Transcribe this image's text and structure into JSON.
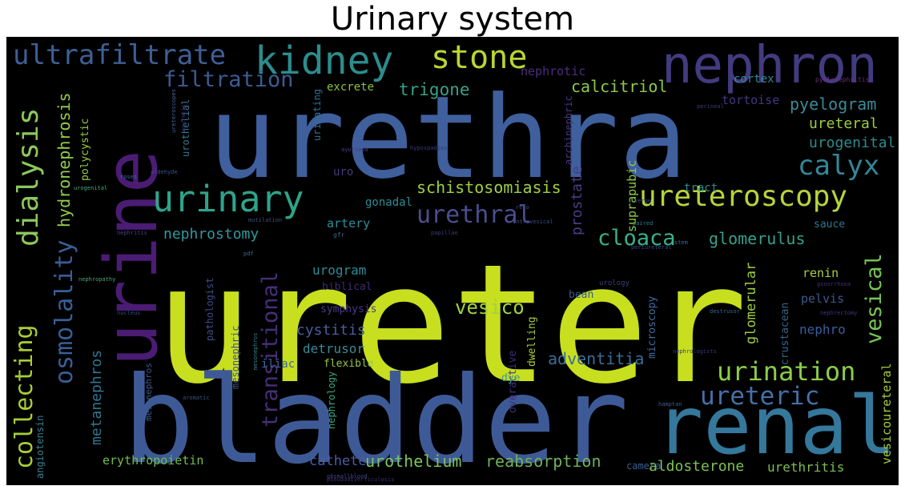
{
  "title": "Urinary system",
  "colors": {
    "background": "#000000",
    "title": "#000000"
  },
  "words": [
    {
      "text": "ureter",
      "color": "#c8df1f"
    },
    {
      "text": "urethra",
      "color": "#3f5f9d"
    },
    {
      "text": "bladder",
      "color": "#3e5a96"
    },
    {
      "text": "urine",
      "color": "#4b1c74"
    },
    {
      "text": "renal",
      "color": "#35789c"
    },
    {
      "text": "nephron",
      "color": "#433b80"
    },
    {
      "text": "kidney",
      "color": "#2d8c8d"
    },
    {
      "text": "stone",
      "color": "#b9d631"
    },
    {
      "text": "ultrafiltrate",
      "color": "#3e5f95"
    },
    {
      "text": "urinary",
      "color": "#2fa38a"
    },
    {
      "text": "ureteroscopy",
      "color": "#b6d43c"
    },
    {
      "text": "dialysis",
      "color": "#8cc85a"
    },
    {
      "text": "calyx",
      "color": "#33879a"
    },
    {
      "text": "filtration",
      "color": "#3d5b93"
    },
    {
      "text": "urination",
      "color": "#8bce48"
    },
    {
      "text": "ureteric",
      "color": "#456fa8"
    },
    {
      "text": "urethral",
      "color": "#4b4e8e"
    },
    {
      "text": "cloaca",
      "color": "#3ab08c"
    },
    {
      "text": "collecting",
      "color": "#a7ce36"
    },
    {
      "text": "osmolality",
      "color": "#385f97"
    },
    {
      "text": "trigone",
      "color": "#39a189"
    },
    {
      "text": "calcitriol",
      "color": "#8ac94b"
    },
    {
      "text": "pyelogram",
      "color": "#3a8a97"
    },
    {
      "text": "schistosomiasis",
      "color": "#9ed043"
    },
    {
      "text": "transitional",
      "color": "#472e78"
    },
    {
      "text": "vesical",
      "color": "#77c554"
    },
    {
      "text": "hydronephrosis",
      "color": "#90cd4a"
    },
    {
      "text": "nephrostomy",
      "color": "#3098a0"
    },
    {
      "text": "glomerulus",
      "color": "#35a08a"
    },
    {
      "text": "ureteral",
      "color": "#9acd46"
    },
    {
      "text": "urogenital",
      "color": "#2c8c8f"
    },
    {
      "text": "nephrotic",
      "color": "#4a2d80"
    },
    {
      "text": "excrete",
      "color": "#8dc13f"
    },
    {
      "text": "cortex",
      "color": "#2e8a98"
    },
    {
      "text": "tortoise",
      "color": "#433785"
    },
    {
      "text": "pyelonephritis",
      "color": "#6a2d80"
    },
    {
      "text": "vesico",
      "color": "#9fd344"
    },
    {
      "text": "cystitis",
      "color": "#4a5d9e"
    },
    {
      "text": "detrusor",
      "color": "#3a8a96"
    },
    {
      "text": "adventitia",
      "color": "#3b6d99"
    },
    {
      "text": "urogram",
      "color": "#2f8998"
    },
    {
      "text": "glomerular",
      "color": "#9ccd42"
    },
    {
      "text": "nephro",
      "color": "#3a5d9a"
    },
    {
      "text": "vesicoureteral",
      "color": "#a5ce34"
    },
    {
      "text": "metanephros",
      "color": "#30758f"
    },
    {
      "text": "erythropoietin",
      "color": "#6ebe50"
    },
    {
      "text": "catheter",
      "color": "#4a5da3"
    },
    {
      "text": "urothelium",
      "color": "#7cc55e"
    },
    {
      "text": "reabsorption",
      "color": "#6fb15a"
    },
    {
      "text": "aldosterone",
      "color": "#7bc355"
    },
    {
      "text": "urethritis",
      "color": "#7bbd54"
    },
    {
      "text": "camera",
      "color": "#3a6090"
    },
    {
      "text": "prostate",
      "color": "#4a3c86"
    },
    {
      "text": "suprapubic",
      "color": "#8ec94a"
    },
    {
      "text": "tract",
      "color": "#2d8b8f"
    },
    {
      "text": "artery",
      "color": "#2e8e96"
    },
    {
      "text": "gonadal",
      "color": "#2d8c95"
    },
    {
      "text": "uro",
      "color": "#433a7e"
    },
    {
      "text": "urinating",
      "color": "#2e7292"
    },
    {
      "text": "urothelial",
      "color": "#35768e"
    },
    {
      "text": "archinephric",
      "color": "#4a3784"
    },
    {
      "text": "polycystic",
      "color": "#98cc45"
    },
    {
      "text": "mesonephric",
      "color": "#46517f"
    },
    {
      "text": "symphysis",
      "color": "#4a3a88"
    },
    {
      "text": "biblical",
      "color": "#3e2a73"
    },
    {
      "text": "bean",
      "color": "#355c8c"
    },
    {
      "text": "microscopy",
      "color": "#3f6da0"
    },
    {
      "text": "pelvis",
      "color": "#3c598a"
    },
    {
      "text": "crustacean",
      "color": "#36638b"
    },
    {
      "text": "renin",
      "color": "#a8cf45"
    },
    {
      "text": "sauce",
      "color": "#2f7795"
    },
    {
      "text": "overactive",
      "color": "#3f2e7a"
    },
    {
      "text": "dwelling",
      "color": "#a5cd3e"
    },
    {
      "text": "dye",
      "color": "#3a9a92"
    },
    {
      "text": "flexible",
      "color": "#96c645"
    },
    {
      "text": "iliac",
      "color": "#3a6aa1"
    },
    {
      "text": "nephrology",
      "color": "#3ba584"
    },
    {
      "text": "mesonephros",
      "color": "#3a5c8a"
    },
    {
      "text": "pathologist",
      "color": "#3d4d86"
    },
    {
      "text": "angiotensin",
      "color": "#3a8090"
    },
    {
      "text": "urology",
      "color": "#3e3f7d"
    },
    {
      "text": "nephrologists",
      "color": "#3b3a78"
    },
    {
      "text": "destrusor",
      "color": "#2f6c8e"
    },
    {
      "text": "gonorrhoea",
      "color": "#4a2a7a"
    },
    {
      "text": "nephrectomy",
      "color": "#3e3680"
    },
    {
      "text": "hamptan",
      "color": "#3f5c88"
    },
    {
      "text": "aromatic",
      "color": "#3c5380"
    },
    {
      "text": "nucleus",
      "color": "#344a78"
    },
    {
      "text": "mutilation",
      "color": "#3c5380"
    },
    {
      "text": "nephropathy",
      "color": "#4aa878"
    },
    {
      "text": "nephritis",
      "color": "#4a4090"
    },
    {
      "text": "anuresis",
      "color": "#3a2a70"
    },
    {
      "text": "urogenital",
      "color": "#42b07c"
    },
    {
      "text": "aldehyde",
      "color": "#3a5290"
    },
    {
      "text": "hypospadias",
      "color": "#3a3a80"
    },
    {
      "text": "ayurveda",
      "color": "#4a3c86"
    },
    {
      "text": "mesonephros",
      "color": "#30838f"
    },
    {
      "text": "ureteroscopes",
      "color": "#44609c"
    },
    {
      "text": "roses",
      "color": "#3a6aa0"
    },
    {
      "text": "paired",
      "color": "#2e7b8f"
    },
    {
      "text": "periureteral",
      "color": "#3a4a88"
    },
    {
      "text": "perineal",
      "color": "#3a3a78"
    },
    {
      "text": "pdf",
      "color": "#3a6a98"
    },
    {
      "text": "relo",
      "color": "#3c4e88"
    },
    {
      "text": "verge",
      "color": "#3a4a88"
    },
    {
      "text": "stem",
      "color": "#3a6a98"
    },
    {
      "text": "intravesical",
      "color": "#3f4a88"
    },
    {
      "text": "gbsmallblood",
      "color": "#3a4a88"
    },
    {
      "text": "gfr",
      "color": "#2e6a90"
    },
    {
      "text": "papillae",
      "color": "#3a3d7d"
    },
    {
      "text": "pseudodiverticulosis",
      "color": "#3e2e78"
    }
  ]
}
